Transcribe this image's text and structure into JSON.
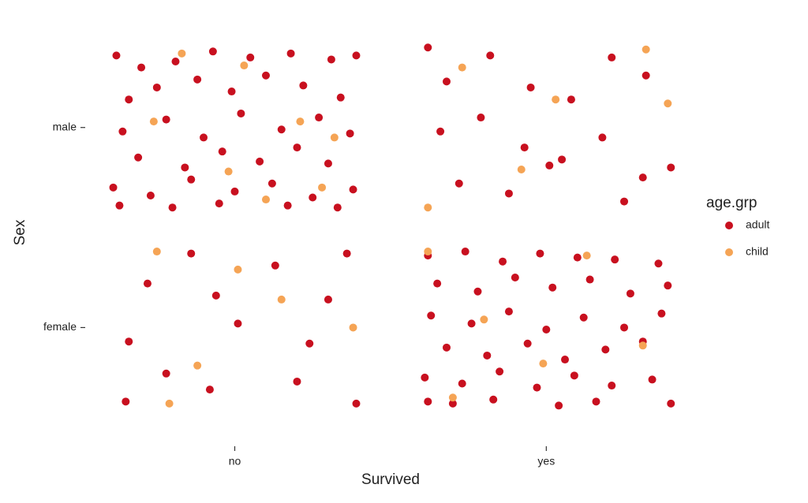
{
  "chart_data": {
    "type": "scatter",
    "xlabel": "Survived",
    "ylabel": "Sex",
    "xlim": [
      0.52,
      2.45
    ],
    "ylim": [
      0.45,
      2.46
    ],
    "xticks": [
      {
        "value": 1,
        "label": "no"
      },
      {
        "value": 2,
        "label": "yes"
      }
    ],
    "yticks": [
      {
        "value": 1,
        "label": "female"
      },
      {
        "value": 2,
        "label": "male"
      }
    ],
    "legend_title": "age.grp",
    "legend": "right",
    "series": [
      {
        "name": "adult",
        "color": "#c8101f",
        "x": [
          0.62,
          0.7,
          0.81,
          0.93,
          1.05,
          1.18,
          1.31,
          1.39,
          0.66,
          0.75,
          0.88,
          0.99,
          1.1,
          1.22,
          1.34,
          0.64,
          0.78,
          0.9,
          1.02,
          1.15,
          1.27,
          1.37,
          0.69,
          0.84,
          0.96,
          1.08,
          1.2,
          1.3,
          0.61,
          0.73,
          0.86,
          1.0,
          1.12,
          1.25,
          1.38,
          0.63,
          0.8,
          0.95,
          1.17,
          1.33,
          1.62,
          1.68,
          1.82,
          1.95,
          2.08,
          2.21,
          2.32,
          1.66,
          1.79,
          1.93,
          2.05,
          2.18,
          2.31,
          2.4,
          1.72,
          1.88,
          2.01,
          2.25,
          0.66,
          0.72,
          0.86,
          0.94,
          1.01,
          1.13,
          1.24,
          1.3,
          1.36,
          0.65,
          0.78,
          0.92,
          1.2,
          1.39,
          1.62,
          1.74,
          1.86,
          1.98,
          2.1,
          2.22,
          2.36,
          1.65,
          1.78,
          1.9,
          2.02,
          2.14,
          2.27,
          2.39,
          1.63,
          1.76,
          1.88,
          2.0,
          2.12,
          2.25,
          2.37,
          1.68,
          1.81,
          1.94,
          2.06,
          2.19,
          2.31,
          1.61,
          1.73,
          1.85,
          1.97,
          2.09,
          2.21,
          2.34,
          1.62,
          1.7,
          1.83,
          2.04,
          2.16,
          2.4
        ],
        "values": [
          2.36,
          2.3,
          2.33,
          2.38,
          2.35,
          2.37,
          2.34,
          2.36,
          2.14,
          2.2,
          2.24,
          2.18,
          2.26,
          2.21,
          2.15,
          1.98,
          2.04,
          1.95,
          2.07,
          1.99,
          2.05,
          1.97,
          1.85,
          1.8,
          1.88,
          1.83,
          1.9,
          1.82,
          1.7,
          1.66,
          1.74,
          1.68,
          1.72,
          1.65,
          1.69,
          1.61,
          1.6,
          1.62,
          1.61,
          1.6,
          2.4,
          2.23,
          2.36,
          2.2,
          2.14,
          2.35,
          2.26,
          1.98,
          2.05,
          1.9,
          1.84,
          1.95,
          1.75,
          1.8,
          1.72,
          1.67,
          1.81,
          1.63,
          0.93,
          1.22,
          1.37,
          1.16,
          1.02,
          1.31,
          0.92,
          1.14,
          1.37,
          0.63,
          0.77,
          0.69,
          0.73,
          0.62,
          1.36,
          1.38,
          1.33,
          1.37,
          1.35,
          1.34,
          1.32,
          1.22,
          1.18,
          1.25,
          1.2,
          1.24,
          1.17,
          1.21,
          1.06,
          1.02,
          1.08,
          0.99,
          1.05,
          1.0,
          1.07,
          0.9,
          0.86,
          0.92,
          0.84,
          0.89,
          0.93,
          0.75,
          0.72,
          0.78,
          0.7,
          0.76,
          0.71,
          0.74,
          0.63,
          0.62,
          0.64,
          0.61,
          0.63,
          0.62
        ]
      },
      {
        "name": "child",
        "color": "#f5a455",
        "x": [
          0.83,
          1.03,
          1.21,
          1.32,
          0.74,
          0.98,
          1.1,
          1.28,
          1.62,
          1.73,
          1.92,
          2.03,
          2.32,
          2.39,
          0.75,
          0.79,
          0.88,
          1.01,
          1.15,
          1.38,
          1.62,
          1.8,
          1.99,
          2.13,
          2.31,
          1.7
        ],
        "values": [
          2.37,
          2.31,
          2.03,
          1.95,
          2.03,
          1.78,
          1.64,
          1.7,
          1.6,
          2.3,
          1.79,
          2.14,
          2.39,
          2.12,
          1.38,
          0.62,
          0.81,
          1.29,
          1.14,
          1.0,
          1.38,
          1.04,
          0.82,
          1.36,
          0.91,
          0.65
        ]
      }
    ]
  }
}
